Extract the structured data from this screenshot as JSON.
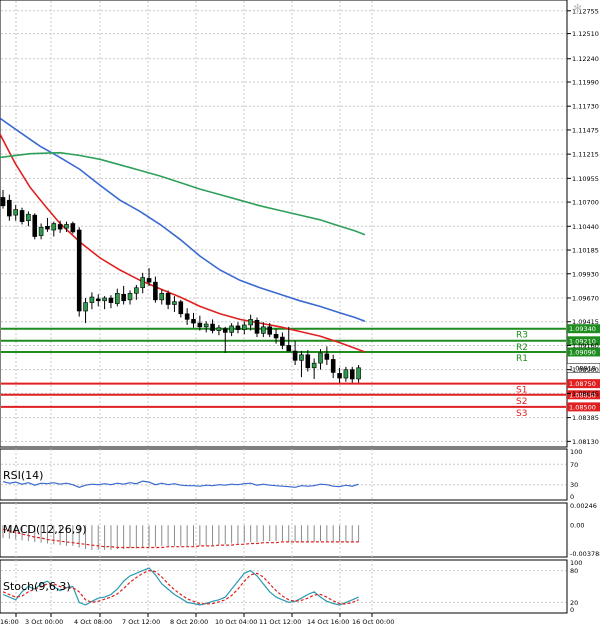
{
  "chart_data": {
    "type": "candlestick",
    "price_axis": {
      "ticks": [
        1.12755,
        1.1251,
        1.1224,
        1.1199,
        1.1173,
        1.11475,
        1.11215,
        1.10955,
        1.107,
        1.1044,
        1.10185,
        1.0993,
        1.0967,
        1.09415,
        1.0916,
        1.089,
        1.08645,
        1.08385,
        1.0813
      ],
      "tick_labels": [
        "1.12755",
        "1.12510",
        "1.12240",
        "1.11990",
        "1.11730",
        "1.11475",
        "1.11215",
        "1.10955",
        "1.10700",
        "1.10440",
        "1.10185",
        "1.09930",
        "1.09670",
        "1.09415",
        "1.09160",
        "1.08900",
        "1.08645",
        "1.08385",
        "1.08130"
      ],
      "ylim": [
        1.0808,
        1.1286
      ]
    },
    "time_axis": {
      "labels": [
        "16:00",
        "3 Oct 00:00",
        "4 Oct 08:00",
        "7 Oct 12:00",
        "8 Oct 20:00",
        "10 Oct 04:00",
        "11 Oct 12:00",
        "14 Oct 16:00",
        "16 Oct 00:00"
      ]
    },
    "last_price": 1.08918,
    "last_price_label": "1.08918",
    "levels": [
      {
        "name": "R3",
        "value": 1.0934,
        "value_label": "1.09340",
        "color": "#1e8c1e"
      },
      {
        "name": "R2",
        "value": 1.0921,
        "value_label": "1.09210",
        "color": "#1e8c1e"
      },
      {
        "name": "R1",
        "value": 1.0909,
        "value_label": "1.09090",
        "color": "#1e8c1e"
      },
      {
        "name": "S1",
        "value": 1.0875,
        "value_label": "1.08750",
        "color": "#e02020"
      },
      {
        "name": "S2",
        "value": 1.0863,
        "value_label": "1.08630",
        "color": "#e02020"
      },
      {
        "name": "S3",
        "value": 1.085,
        "value_label": "1.08500",
        "color": "#e02020"
      }
    ],
    "moving_averages": [
      {
        "color": "#e02020",
        "points": [
          [
            0,
            1.1143
          ],
          [
            15,
            1.1112
          ],
          [
            30,
            1.1086
          ],
          [
            45,
            1.1066
          ],
          [
            60,
            1.1047
          ],
          [
            80,
            1.1027
          ],
          [
            100,
            1.101
          ],
          [
            120,
            1.0997
          ],
          [
            140,
            1.0986
          ],
          [
            160,
            1.0977
          ],
          [
            180,
            1.0968
          ],
          [
            200,
            1.0958
          ],
          [
            220,
            1.095
          ],
          [
            240,
            1.0944
          ],
          [
            260,
            1.094
          ],
          [
            280,
            1.0936
          ],
          [
            300,
            1.0931
          ],
          [
            320,
            1.0926
          ],
          [
            340,
            1.0919
          ],
          [
            355,
            1.0913
          ],
          [
            365,
            1.0909
          ]
        ]
      },
      {
        "color": "#3a6ad0",
        "points": [
          [
            0,
            1.116
          ],
          [
            20,
            1.1145
          ],
          [
            40,
            1.113
          ],
          [
            60,
            1.1118
          ],
          [
            80,
            1.1105
          ],
          [
            100,
            1.1088
          ],
          [
            120,
            1.1072
          ],
          [
            140,
            1.106
          ],
          [
            160,
            1.1046
          ],
          [
            180,
            1.103
          ],
          [
            200,
            1.1012
          ],
          [
            220,
            1.0997
          ],
          [
            240,
            1.0986
          ],
          [
            260,
            1.0978
          ],
          [
            280,
            1.0971
          ],
          [
            300,
            1.0964
          ],
          [
            320,
            1.0958
          ],
          [
            340,
            1.0951
          ],
          [
            355,
            1.0946
          ],
          [
            365,
            1.0942
          ]
        ]
      },
      {
        "color": "#2ea05a",
        "points": [
          [
            0,
            1.1118
          ],
          [
            30,
            1.1122
          ],
          [
            60,
            1.1123
          ],
          [
            80,
            1.112
          ],
          [
            100,
            1.1116
          ],
          [
            120,
            1.111
          ],
          [
            140,
            1.1104
          ],
          [
            160,
            1.1098
          ],
          [
            180,
            1.1091
          ],
          [
            200,
            1.1084
          ],
          [
            220,
            1.1078
          ],
          [
            240,
            1.1072
          ],
          [
            260,
            1.1066
          ],
          [
            280,
            1.1061
          ],
          [
            300,
            1.1056
          ],
          [
            320,
            1.1051
          ],
          [
            340,
            1.1044
          ],
          [
            355,
            1.1039
          ],
          [
            365,
            1.1035
          ]
        ]
      }
    ],
    "candles": [
      {
        "o": 1.1075,
        "h": 1.1083,
        "l": 1.1063,
        "c": 1.1066
      },
      {
        "o": 1.1072,
        "h": 1.1078,
        "l": 1.105,
        "c": 1.1055
      },
      {
        "o": 1.1056,
        "h": 1.1067,
        "l": 1.105,
        "c": 1.1062
      },
      {
        "o": 1.1061,
        "h": 1.1064,
        "l": 1.1046,
        "c": 1.1049
      },
      {
        "o": 1.105,
        "h": 1.106,
        "l": 1.1044,
        "c": 1.1057
      },
      {
        "o": 1.1056,
        "h": 1.1058,
        "l": 1.103,
        "c": 1.1033
      },
      {
        "o": 1.1034,
        "h": 1.1047,
        "l": 1.103,
        "c": 1.1043
      },
      {
        "o": 1.1044,
        "h": 1.1053,
        "l": 1.1038,
        "c": 1.1041
      },
      {
        "o": 1.104,
        "h": 1.1049,
        "l": 1.1033,
        "c": 1.1047
      },
      {
        "o": 1.1046,
        "h": 1.105,
        "l": 1.1037,
        "c": 1.1041
      },
      {
        "o": 1.1042,
        "h": 1.1049,
        "l": 1.1038,
        "c": 1.1046
      },
      {
        "o": 1.1047,
        "h": 1.1049,
        "l": 1.1036,
        "c": 1.1038
      },
      {
        "o": 1.104,
        "h": 1.1043,
        "l": 1.0947,
        "c": 1.0953
      },
      {
        "o": 1.0953,
        "h": 1.0967,
        "l": 1.094,
        "c": 1.0962
      },
      {
        "o": 1.0962,
        "h": 1.0973,
        "l": 1.0955,
        "c": 1.0968
      },
      {
        "o": 1.0966,
        "h": 1.0971,
        "l": 1.0958,
        "c": 1.0964
      },
      {
        "o": 1.0964,
        "h": 1.0969,
        "l": 1.0955,
        "c": 1.0967
      },
      {
        "o": 1.0967,
        "h": 1.097,
        "l": 1.0956,
        "c": 1.0962
      },
      {
        "o": 1.0961,
        "h": 1.0977,
        "l": 1.0958,
        "c": 1.0972
      },
      {
        "o": 1.0971,
        "h": 1.098,
        "l": 1.096,
        "c": 1.0964
      },
      {
        "o": 1.0965,
        "h": 1.0975,
        "l": 1.096,
        "c": 1.0972
      },
      {
        "o": 1.0972,
        "h": 1.0981,
        "l": 1.0965,
        "c": 1.0978
      },
      {
        "o": 1.0978,
        "h": 1.0994,
        "l": 1.0972,
        "c": 1.0989
      },
      {
        "o": 1.0988,
        "h": 1.0999,
        "l": 1.098,
        "c": 1.0984
      },
      {
        "o": 1.0984,
        "h": 1.099,
        "l": 1.0962,
        "c": 1.0965
      },
      {
        "o": 1.0965,
        "h": 1.0976,
        "l": 1.096,
        "c": 1.0972
      },
      {
        "o": 1.0972,
        "h": 1.0975,
        "l": 1.0955,
        "c": 1.096
      },
      {
        "o": 1.096,
        "h": 1.0969,
        "l": 1.0952,
        "c": 1.0963
      },
      {
        "o": 1.0963,
        "h": 1.0965,
        "l": 1.0946,
        "c": 1.095
      },
      {
        "o": 1.095,
        "h": 1.0956,
        "l": 1.0938,
        "c": 1.0944
      },
      {
        "o": 1.0944,
        "h": 1.0951,
        "l": 1.0935,
        "c": 1.094
      },
      {
        "o": 1.094,
        "h": 1.0948,
        "l": 1.0932,
        "c": 1.0936
      },
      {
        "o": 1.0936,
        "h": 1.0942,
        "l": 1.093,
        "c": 1.0939
      },
      {
        "o": 1.0939,
        "h": 1.0944,
        "l": 1.0929,
        "c": 1.0932
      },
      {
        "o": 1.0932,
        "h": 1.0938,
        "l": 1.0927,
        "c": 1.0935
      },
      {
        "o": 1.0934,
        "h": 1.0936,
        "l": 1.0908,
        "c": 1.093
      },
      {
        "o": 1.093,
        "h": 1.094,
        "l": 1.0926,
        "c": 1.0937
      },
      {
        "o": 1.0937,
        "h": 1.0941,
        "l": 1.0929,
        "c": 1.0933
      },
      {
        "o": 1.0933,
        "h": 1.0942,
        "l": 1.0928,
        "c": 1.0938
      },
      {
        "o": 1.0938,
        "h": 1.0949,
        "l": 1.0932,
        "c": 1.0944
      },
      {
        "o": 1.0943,
        "h": 1.0946,
        "l": 1.0925,
        "c": 1.0929
      },
      {
        "o": 1.0929,
        "h": 1.0941,
        "l": 1.0925,
        "c": 1.0936
      },
      {
        "o": 1.0936,
        "h": 1.094,
        "l": 1.0925,
        "c": 1.0928
      },
      {
        "o": 1.0928,
        "h": 1.0934,
        "l": 1.0918,
        "c": 1.0924
      },
      {
        "o": 1.0925,
        "h": 1.093,
        "l": 1.0912,
        "c": 1.0916
      },
      {
        "o": 1.0916,
        "h": 1.0936,
        "l": 1.091,
        "c": 1.091
      },
      {
        "o": 1.091,
        "h": 1.0921,
        "l": 1.0895,
        "c": 1.09
      },
      {
        "o": 1.09,
        "h": 1.091,
        "l": 1.0882,
        "c": 1.0906
      },
      {
        "o": 1.0906,
        "h": 1.0911,
        "l": 1.0888,
        "c": 1.0892
      },
      {
        "o": 1.0892,
        "h": 1.0902,
        "l": 1.088,
        "c": 1.0897
      },
      {
        "o": 1.0897,
        "h": 1.0912,
        "l": 1.089,
        "c": 1.0908
      },
      {
        "o": 1.0907,
        "h": 1.0915,
        "l": 1.0895,
        "c": 1.0901
      },
      {
        "o": 1.0901,
        "h": 1.0906,
        "l": 1.0881,
        "c": 1.0887
      },
      {
        "o": 1.0886,
        "h": 1.0892,
        "l": 1.0876,
        "c": 1.0881
      },
      {
        "o": 1.0881,
        "h": 1.0893,
        "l": 1.0877,
        "c": 1.089
      },
      {
        "o": 1.089,
        "h": 1.0893,
        "l": 1.0876,
        "c": 1.088
      },
      {
        "o": 1.088,
        "h": 1.0895,
        "l": 1.0876,
        "c": 1.0892
      }
    ],
    "indicators": [
      {
        "name": "RSI(14)",
        "ticks": [
          100,
          70,
          30,
          0
        ],
        "tick_labels": [
          "100",
          "70",
          "30",
          "0"
        ],
        "ylim": [
          0,
          100
        ],
        "levels": [
          70,
          30
        ],
        "line_color": "#3a6ad0",
        "values": [
          36,
          33,
          35,
          31,
          34,
          29,
          33,
          32,
          34,
          31,
          33,
          30,
          25,
          29,
          31,
          30,
          32,
          30,
          33,
          31,
          34,
          32,
          37,
          35,
          30,
          33,
          30,
          32,
          29,
          28,
          28,
          27,
          29,
          28,
          30,
          29,
          31,
          30,
          32,
          33,
          29,
          31,
          29,
          28,
          27,
          26,
          25,
          28,
          27,
          28,
          31,
          30,
          27,
          26,
          29,
          27,
          31
        ]
      },
      {
        "name": "MACD(12,26,9)",
        "ticks": [
          0.00246,
          0.0,
          -0.003788
        ],
        "tick_labels": [
          "0.00246",
          "0.00",
          "-0.003788"
        ],
        "ylim": [
          -0.004,
          0.0028
        ],
        "hist_color": "#8a8a8a",
        "signal_color": "#e02020",
        "histogram": [
          -0.0016,
          -0.0017,
          -0.0018,
          -0.0019,
          -0.002,
          -0.0021,
          -0.0022,
          -0.0023,
          -0.0024,
          -0.0025,
          -0.0026,
          -0.0026,
          -0.0028,
          -0.003,
          -0.0031,
          -0.0031,
          -0.0031,
          -0.0031,
          -0.003,
          -0.003,
          -0.0029,
          -0.0029,
          -0.0028,
          -0.0027,
          -0.0027,
          -0.0026,
          -0.0026,
          -0.0026,
          -0.0026,
          -0.0026,
          -0.0026,
          -0.0026,
          -0.0025,
          -0.0025,
          -0.0024,
          -0.0024,
          -0.0023,
          -0.0023,
          -0.0022,
          -0.0021,
          -0.0021,
          -0.002,
          -0.002,
          -0.002,
          -0.002,
          -0.0021,
          -0.0021,
          -0.0021,
          -0.0021,
          -0.0021,
          -0.002,
          -0.002,
          -0.002,
          -0.0021,
          -0.0021,
          -0.0021,
          -0.0021
        ],
        "signal": [
          -0.0005,
          -0.0007,
          -0.0009,
          -0.0011,
          -0.0013,
          -0.0015,
          -0.0016,
          -0.0018,
          -0.0019,
          -0.002,
          -0.0021,
          -0.0022,
          -0.0023,
          -0.0024,
          -0.0025,
          -0.0026,
          -0.0027,
          -0.0027,
          -0.0028,
          -0.0028,
          -0.0028,
          -0.0028,
          -0.0028,
          -0.0028,
          -0.0028,
          -0.0028,
          -0.0027,
          -0.0027,
          -0.0027,
          -0.0027,
          -0.0027,
          -0.0026,
          -0.0026,
          -0.0026,
          -0.0025,
          -0.0025,
          -0.0025,
          -0.0024,
          -0.0024,
          -0.0023,
          -0.0023,
          -0.0022,
          -0.0022,
          -0.0022,
          -0.0021,
          -0.0021,
          -0.0021,
          -0.0021,
          -0.0021,
          -0.0021,
          -0.0021,
          -0.0021,
          -0.0021,
          -0.0021,
          -0.0021,
          -0.0021,
          -0.0021
        ]
      },
      {
        "name": "Stoch(9,6,3)",
        "ticks": [
          100,
          80,
          20,
          0
        ],
        "tick_labels": [
          "100",
          "80",
          "20",
          "0"
        ],
        "ylim": [
          0,
          100
        ],
        "levels": [
          80,
          20
        ],
        "main_color": "#2a9ab0",
        "signal_color": "#e02020",
        "main": [
          35,
          30,
          25,
          40,
          50,
          45,
          55,
          60,
          50,
          42,
          48,
          50,
          20,
          15,
          22,
          28,
          30,
          35,
          45,
          60,
          70,
          75,
          80,
          85,
          72,
          55,
          45,
          35,
          28,
          20,
          18,
          15,
          18,
          22,
          25,
          30,
          45,
          60,
          75,
          80,
          70,
          55,
          40,
          30,
          25,
          20,
          22,
          28,
          35,
          40,
          30,
          22,
          18,
          15,
          20,
          25,
          30
        ],
        "signal": [
          40,
          35,
          30,
          32,
          40,
          45,
          50,
          55,
          55,
          50,
          47,
          48,
          40,
          25,
          20,
          22,
          26,
          30,
          36,
          46,
          58,
          67,
          75,
          80,
          78,
          68,
          55,
          44,
          35,
          27,
          22,
          18,
          17,
          18,
          21,
          25,
          33,
          45,
          60,
          72,
          75,
          68,
          55,
          42,
          32,
          25,
          22,
          24,
          28,
          34,
          35,
          30,
          23,
          18,
          17,
          20,
          25
        ]
      }
    ]
  }
}
